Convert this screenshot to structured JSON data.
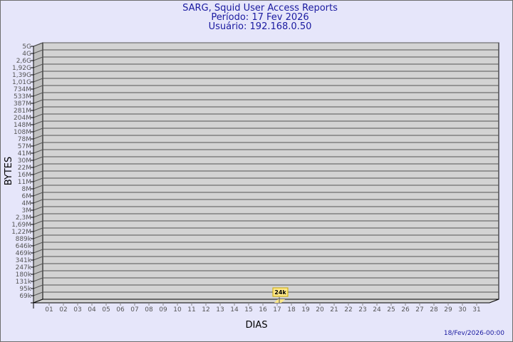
{
  "header": {
    "title": "SARG, Squid User Access Reports",
    "period": "Período: 17 Fev 2026",
    "user": "Usuário: 192.168.0.50"
  },
  "footer": {
    "generated": "18/Fev/2026-00:00"
  },
  "colors": {
    "background": "#e6e6fa",
    "wall": "#d3d3d3",
    "side_wall": "#c0c0c0",
    "bar": "#ffe88a",
    "title": "#1a1aa0"
  },
  "chart_data": {
    "type": "bar",
    "title": "SARG, Squid User Access Reports",
    "xlabel": "DIAS",
    "ylabel": "BYTES",
    "y_scale": "log",
    "grid": true,
    "y_ticks": [
      "5G",
      "4G",
      "2,6G",
      "1,92G",
      "1,39G",
      "1,01G",
      "734M",
      "533M",
      "387M",
      "281M",
      "204M",
      "148M",
      "108M",
      "78M",
      "57M",
      "41M",
      "30M",
      "22M",
      "16M",
      "11M",
      "8M",
      "6M",
      "4M",
      "3M",
      "2,3M",
      "1,69M",
      "1,22M",
      "889k",
      "646k",
      "469k",
      "341k",
      "247k",
      "180k",
      "131k",
      "95k",
      "69k"
    ],
    "categories": [
      "01",
      "02",
      "03",
      "04",
      "05",
      "06",
      "07",
      "08",
      "09",
      "10",
      "11",
      "12",
      "13",
      "14",
      "15",
      "16",
      "17",
      "18",
      "19",
      "20",
      "21",
      "22",
      "23",
      "24",
      "25",
      "26",
      "27",
      "28",
      "29",
      "30",
      "31"
    ],
    "bars": [
      {
        "category": "17",
        "value": 24000,
        "label": "24k"
      }
    ]
  }
}
